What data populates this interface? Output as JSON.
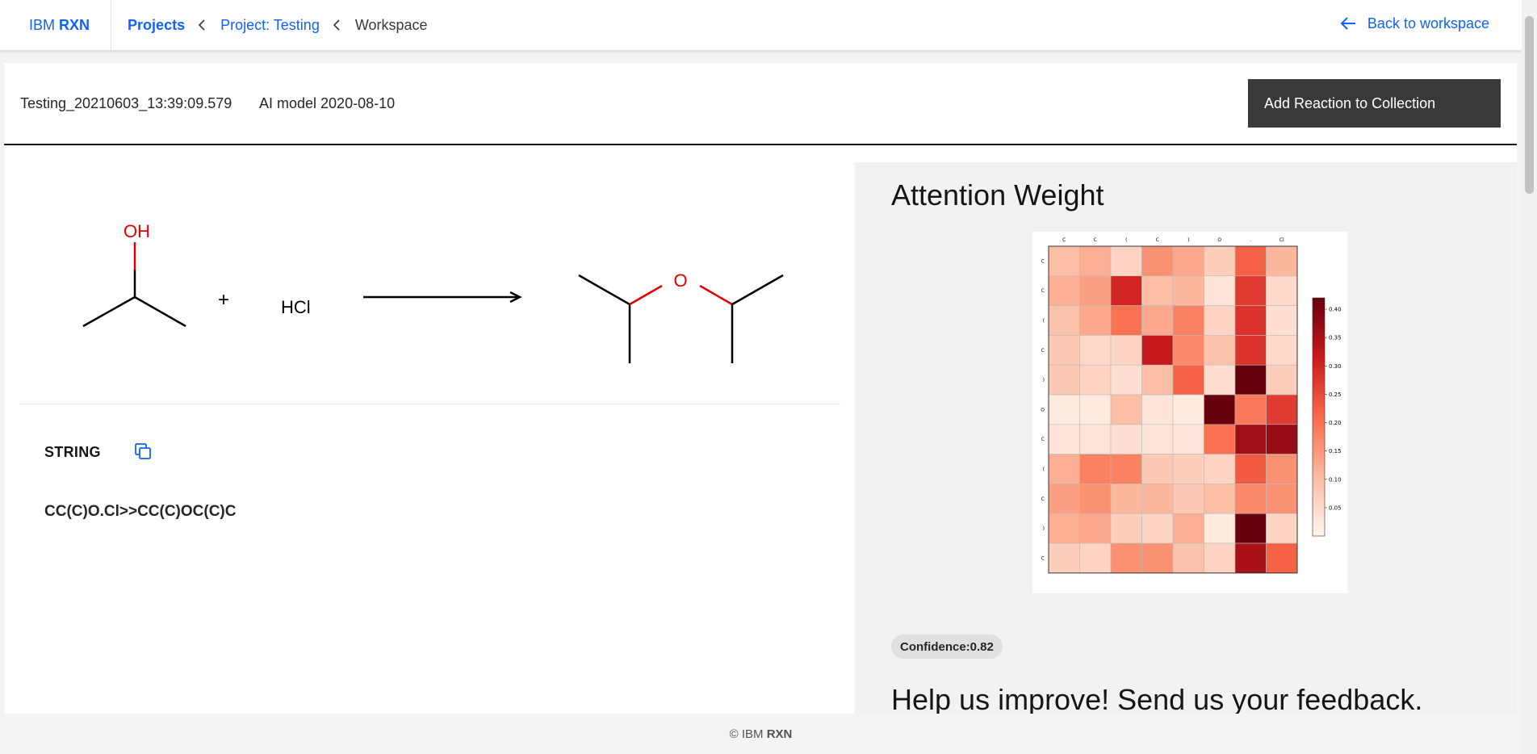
{
  "topbar": {
    "brand_prefix": "IBM",
    "brand_name": "RXN",
    "breadcrumbs": [
      "Projects",
      "Project: Testing",
      "Workspace"
    ],
    "back_label": "Back to workspace"
  },
  "reaction": {
    "name": "Testing_20210603_13:39:09.579",
    "model": "AI model 2020-08-10",
    "add_button_label": "Add Reaction to Collection",
    "molecule_labels": {
      "hydroxyl": "OH",
      "plus": "+",
      "reagent": "HCl",
      "ether_oxygen": "O"
    },
    "string_title": "STRING",
    "smiles": "CC(C)O.Cl>>CC(C)OC(C)C"
  },
  "attention": {
    "title": "Attention Weight",
    "confidence_label": "Confidence:0.82",
    "colorbar_ticks": [
      "0.40",
      "0.35",
      "0.30",
      "0.25",
      "0.20",
      "0.15",
      "0.10",
      "0.05"
    ],
    "col_labels": [
      "C",
      "C",
      "(",
      "C",
      ")",
      "O",
      ".",
      "Cl"
    ],
    "row_labels": [
      "C",
      "C",
      "(",
      "C",
      ")",
      "O",
      "C",
      "(",
      "C",
      ")",
      "C"
    ]
  },
  "chart_data": {
    "type": "heatmap",
    "title": "",
    "xlabel": "",
    "ylabel": "",
    "x": [
      "C",
      "C",
      "(",
      "C",
      ")",
      "O",
      ".",
      "Cl"
    ],
    "y": [
      "C",
      "C",
      "(",
      "C",
      ")",
      "O",
      "C",
      "(",
      "C",
      ")",
      "C"
    ],
    "zlim": [
      0.0,
      0.42
    ],
    "values": [
      [
        0.1,
        0.12,
        0.06,
        0.16,
        0.13,
        0.07,
        0.22,
        0.11
      ],
      [
        0.12,
        0.14,
        0.3,
        0.1,
        0.11,
        0.03,
        0.27,
        0.05
      ],
      [
        0.09,
        0.13,
        0.2,
        0.13,
        0.18,
        0.06,
        0.28,
        0.04
      ],
      [
        0.08,
        0.05,
        0.06,
        0.32,
        0.17,
        0.09,
        0.28,
        0.05
      ],
      [
        0.08,
        0.06,
        0.04,
        0.1,
        0.22,
        0.04,
        0.42,
        0.07
      ],
      [
        0.02,
        0.02,
        0.1,
        0.03,
        0.02,
        0.42,
        0.19,
        0.27
      ],
      [
        0.03,
        0.03,
        0.04,
        0.03,
        0.03,
        0.2,
        0.36,
        0.37
      ],
      [
        0.12,
        0.18,
        0.18,
        0.08,
        0.07,
        0.06,
        0.23,
        0.16
      ],
      [
        0.14,
        0.16,
        0.11,
        0.11,
        0.08,
        0.1,
        0.17,
        0.16
      ],
      [
        0.12,
        0.13,
        0.07,
        0.06,
        0.12,
        0.02,
        0.42,
        0.06
      ],
      [
        0.07,
        0.06,
        0.16,
        0.16,
        0.09,
        0.06,
        0.35,
        0.22
      ]
    ],
    "colormap": "Reds",
    "colorbar": true
  }
}
